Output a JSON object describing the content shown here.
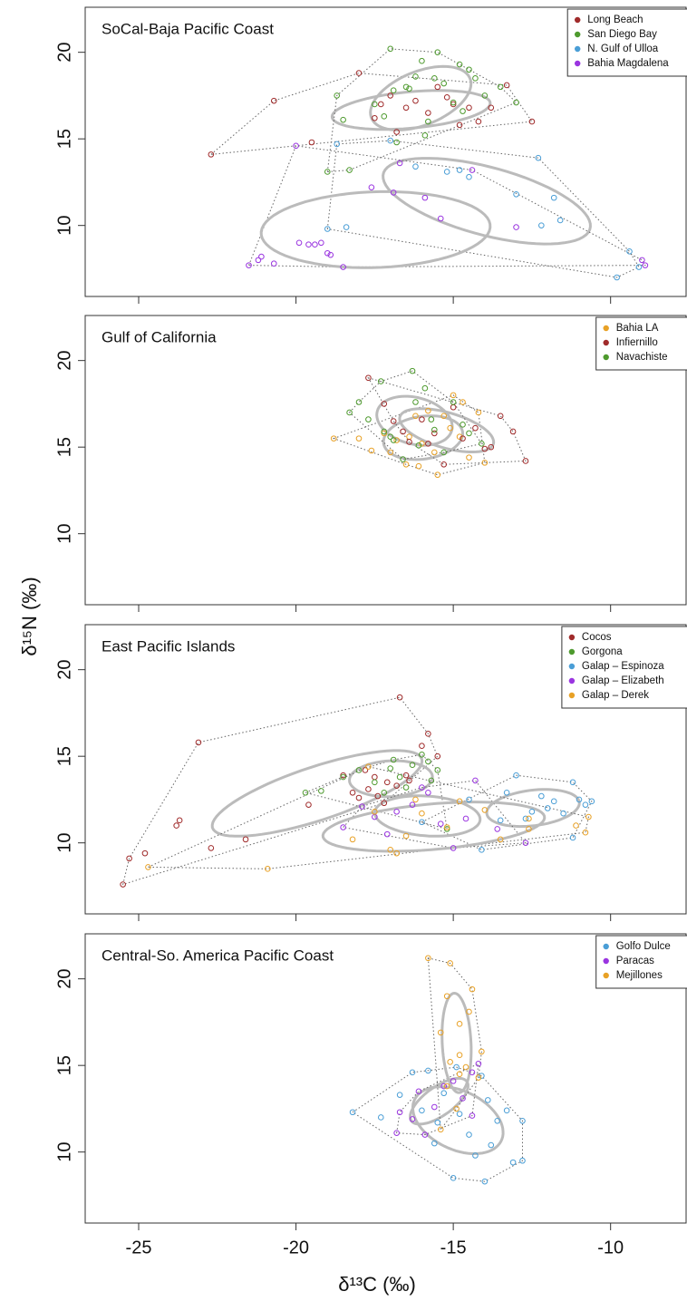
{
  "ylabel": "δ¹⁵N (‰)",
  "xlabel": "δ¹³C (‰)",
  "chart_data": [
    {
      "type": "scatter",
      "title": "SoCal-Baja Pacific Coast",
      "legend": "upper right",
      "xlim": [
        -26.7,
        -7.6
      ],
      "xticks": [
        -25,
        -20,
        -15,
        -10
      ],
      "ylim": [
        5.9,
        22.6
      ],
      "yticks": [
        10,
        15,
        20
      ],
      "series": [
        {
          "name": "Long Beach",
          "color": "#a02b2b",
          "x": [
            -22.7,
            -20.7,
            -18,
            -19.5,
            -17.5,
            -17,
            -16.5,
            -16.2,
            -15.8,
            -15.5,
            -15,
            -14.5,
            -14.8,
            -13.8,
            -13.3,
            -12.5,
            -16.8,
            -15.2,
            -14.2,
            -17.3
          ],
          "y": [
            14.1,
            17.2,
            18.8,
            14.8,
            16.2,
            17.5,
            16.8,
            17.2,
            16.5,
            18,
            17,
            16.8,
            15.8,
            16.8,
            18.1,
            16,
            15.4,
            17.4,
            16,
            17
          ]
        },
        {
          "name": "San Diego Bay",
          "color": "#4e9a2e",
          "x": [
            -18.7,
            -18.5,
            -19,
            -18.3,
            -17.5,
            -17,
            -16.8,
            -16.5,
            -16.2,
            -16,
            -15.8,
            -15.5,
            -15.3,
            -15,
            -14.8,
            -14.5,
            -14.3,
            -14,
            -13.5,
            -13,
            -16.9,
            -15.6,
            -15.9,
            -14.7,
            -17.2,
            -16.4
          ],
          "y": [
            17.5,
            16.1,
            13.1,
            13.2,
            17,
            20.2,
            14.8,
            18,
            18.6,
            19.5,
            16,
            20,
            18.2,
            17.1,
            19.3,
            19,
            18.5,
            17.5,
            18,
            17.1,
            17.8,
            18.5,
            15.2,
            16.6,
            16.3,
            17.9
          ]
        },
        {
          "name": "N. Gulf of Ulloa",
          "color": "#4a9ed6",
          "x": [
            -19,
            -18.4,
            -18.7,
            -17,
            -16.2,
            -15.2,
            -14.8,
            -14.5,
            -13,
            -12.3,
            -12.2,
            -11.6,
            -11.8,
            -9.4,
            -9.1,
            -9.8
          ],
          "y": [
            9.8,
            9.9,
            14.7,
            14.9,
            13.4,
            13.1,
            13.2,
            12.8,
            11.8,
            13.9,
            10,
            10.3,
            11.6,
            8.5,
            7.6,
            7
          ]
        },
        {
          "name": "Bahia Magdalena",
          "color": "#9a35e0",
          "x": [
            -21.5,
            -21.2,
            -21.1,
            -20.7,
            -19.9,
            -19.6,
            -19.4,
            -19.2,
            -19,
            -18.9,
            -18.5,
            -20,
            -17.6,
            -16.9,
            -16.7,
            -15.9,
            -15.4,
            -14.4,
            -13,
            -8.9,
            -9
          ],
          "y": [
            7.7,
            8,
            8.2,
            7.8,
            9,
            8.9,
            8.9,
            9,
            8.4,
            8.3,
            7.6,
            14.6,
            12.2,
            11.9,
            13.6,
            11.6,
            10.4,
            13.2,
            9.9,
            7.7,
            8
          ]
        }
      ]
    },
    {
      "type": "scatter",
      "title": "Gulf of California",
      "legend": "upper right",
      "xlim": [
        -26.7,
        -7.6
      ],
      "xticks": [
        -25,
        -20,
        -15,
        -10
      ],
      "ylim": [
        5.9,
        22.6
      ],
      "yticks": [
        10,
        15,
        20
      ],
      "series": [
        {
          "name": "Bahia LA",
          "color": "#e8a126",
          "x": [
            -18.8,
            -18,
            -17.6,
            -17.2,
            -16.8,
            -16.5,
            -16.2,
            -16,
            -15.8,
            -15.5,
            -15.3,
            -15,
            -14.8,
            -14.5,
            -14.2,
            -14,
            -16.4,
            -15.6,
            -15.1,
            -17,
            -16.1,
            -14.7
          ],
          "y": [
            15.5,
            15.5,
            14.8,
            15.8,
            15.4,
            14,
            16.8,
            15.2,
            17.1,
            13.4,
            16.8,
            18,
            15.6,
            14.4,
            17,
            14.1,
            15.6,
            14.7,
            16.1,
            14.7,
            13.9,
            17.6
          ]
        },
        {
          "name": "Infiernillo",
          "color": "#a02b2b",
          "x": [
            -17.7,
            -17.2,
            -16.9,
            -16.4,
            -16,
            -15.6,
            -15,
            -14.7,
            -14.3,
            -13.8,
            -13.5,
            -13.1,
            -12.7,
            -15.3,
            -16.6,
            -14,
            -15.8
          ],
          "y": [
            19,
            17.5,
            16.5,
            15.3,
            16.6,
            15.8,
            17.3,
            15.5,
            16.1,
            15,
            16.8,
            15.9,
            14.2,
            14,
            15.9,
            14.9,
            15.2
          ]
        },
        {
          "name": "Navachiste",
          "color": "#4e9a2e",
          "x": [
            -18.3,
            -18,
            -17.7,
            -17.3,
            -17,
            -16.6,
            -16.3,
            -16.2,
            -15.9,
            -15.6,
            -15.3,
            -15,
            -14.7,
            -14.5,
            -14.1,
            -16.9,
            -15.7,
            -17.2,
            -16.1
          ],
          "y": [
            17,
            17.6,
            16.6,
            18.8,
            15.6,
            14.3,
            19.4,
            17.6,
            18.4,
            16,
            14.7,
            17.6,
            16.3,
            15.8,
            15.2,
            15.4,
            16.6,
            15.9,
            15.1
          ]
        }
      ]
    },
    {
      "type": "scatter",
      "title": "East Pacific Islands",
      "legend": "upper right",
      "xlim": [
        -26.7,
        -7.6
      ],
      "xticks": [
        -25,
        -20,
        -15,
        -10
      ],
      "ylim": [
        5.9,
        22.6
      ],
      "yticks": [
        10,
        15,
        20
      ],
      "series": [
        {
          "name": "Cocos",
          "color": "#a02b2b",
          "x": [
            -25.5,
            -25.3,
            -24.8,
            -23.8,
            -23.7,
            -23.1,
            -22.7,
            -21.6,
            -19.6,
            -18.5,
            -17.8,
            -16.7,
            -15.8,
            -15.5,
            -16,
            -18,
            -17.7,
            -17.4,
            -17.1,
            -16.8,
            -16.5,
            -18.2,
            -17.5,
            -17.2,
            -16.4
          ],
          "y": [
            7.6,
            9.1,
            9.4,
            11,
            11.3,
            15.8,
            9.7,
            10.2,
            12.2,
            13.9,
            14.2,
            18.4,
            16.3,
            15,
            15.6,
            12.6,
            13.1,
            12.7,
            13.5,
            13.3,
            13.9,
            12.9,
            13.8,
            12.3,
            13.6
          ]
        },
        {
          "name": "Gorgona",
          "color": "#4e9a2e",
          "x": [
            -19.7,
            -19.2,
            -18.5,
            -18,
            -17.5,
            -17,
            -16.7,
            -16.3,
            -16,
            -15.8,
            -15.5,
            -16.5,
            -17.2,
            -15.7,
            -16.9,
            -15.2
          ],
          "y": [
            12.9,
            13,
            13.8,
            14.2,
            13.5,
            14.3,
            13.8,
            14.5,
            15.1,
            14.7,
            14.2,
            13.2,
            12.9,
            13.6,
            14.8,
            10.8
          ]
        },
        {
          "name": "Galap – Espinoza",
          "color": "#4a9ed6",
          "x": [
            -16,
            -14.5,
            -14.1,
            -13.5,
            -13,
            -12.5,
            -12.2,
            -12,
            -11.5,
            -11.2,
            -11.2,
            -11,
            -10.8,
            -10.6,
            -13.3,
            -11.8,
            -12.7
          ],
          "y": [
            11.2,
            12.5,
            9.6,
            11.3,
            13.9,
            11.8,
            12.7,
            12,
            11.7,
            13.5,
            10.3,
            12.5,
            12.2,
            12.4,
            12.9,
            12.4,
            11.4
          ]
        },
        {
          "name": "Galap – Elizabeth",
          "color": "#9a35e0",
          "x": [
            -18.5,
            -17.5,
            -17.1,
            -16.8,
            -16.3,
            -15.8,
            -15.4,
            -15,
            -14.6,
            -14.3,
            -13.6,
            -12.7,
            -16,
            -17.9
          ],
          "y": [
            10.9,
            11.5,
            10.5,
            11.8,
            12.2,
            12.9,
            11.1,
            9.7,
            11.4,
            13.6,
            10.8,
            10,
            13.2,
            12.1
          ]
        },
        {
          "name": "Galap – Derek",
          "color": "#e8a126",
          "x": [
            -24.7,
            -20.9,
            -18.2,
            -17.5,
            -17,
            -16.8,
            -16.5,
            -16,
            -15.2,
            -14.8,
            -14,
            -13.5,
            -12.6,
            -12.6,
            -11.1,
            -10.8,
            -10.7,
            -17.7,
            -16.2
          ],
          "y": [
            8.6,
            8.5,
            10.2,
            11.8,
            9.6,
            9.4,
            10.4,
            11.7,
            10.9,
            12.4,
            11.9,
            10.2,
            11.4,
            10.8,
            11,
            10.6,
            11.5,
            14.4,
            12.5
          ]
        }
      ]
    },
    {
      "type": "scatter",
      "title": "Central-So. America Pacific Coast",
      "legend": "upper right",
      "xlim": [
        -26.7,
        -7.6
      ],
      "xticks": [
        -25,
        -20,
        -15,
        -10
      ],
      "ylim": [
        5.9,
        22.6
      ],
      "yticks": [
        10,
        15,
        20
      ],
      "series": [
        {
          "name": "Golfo Dulce",
          "color": "#4a9ed6",
          "x": [
            -18.2,
            -17.3,
            -16.7,
            -16.3,
            -16,
            -15.8,
            -15.5,
            -15.3,
            -15,
            -14.8,
            -14.5,
            -14.3,
            -14.1,
            -14,
            -13.8,
            -13.6,
            -13.3,
            -13.1,
            -12.8,
            -12.8,
            -14.9,
            -15.6,
            -13.9
          ],
          "y": [
            12.3,
            12,
            13.3,
            14.6,
            12.4,
            14.7,
            11.7,
            13.4,
            8.5,
            12.2,
            11,
            9.8,
            14.4,
            8.3,
            10.4,
            11.8,
            12.4,
            9.4,
            11.8,
            9.5,
            14.9,
            10.5,
            13
          ]
        },
        {
          "name": "Paracas",
          "color": "#9a35e0",
          "x": [
            -16.8,
            -16.7,
            -16.3,
            -15.9,
            -15.6,
            -15.3,
            -15,
            -14.7,
            -14.4,
            -14.2,
            -14.4,
            -16.1
          ],
          "y": [
            11.1,
            12.3,
            11.9,
            11,
            12.6,
            13.8,
            14.1,
            13.1,
            14.6,
            15.1,
            12.1,
            13.5
          ]
        },
        {
          "name": "Mejillones",
          "color": "#e8a126",
          "x": [
            -15.8,
            -15.1,
            -14.4,
            -14.5,
            -15.2,
            -14.8,
            -15.4,
            -14.1,
            -14.8,
            -15.1,
            -14.6,
            -15.2,
            -14.9,
            -15.4,
            -14.8,
            -14.2
          ],
          "y": [
            21.2,
            20.9,
            19.4,
            18.1,
            19,
            17.4,
            16.9,
            15.8,
            15.6,
            15.2,
            14.9,
            13.8,
            12.5,
            11.3,
            14.5,
            14.3
          ]
        }
      ]
    }
  ]
}
